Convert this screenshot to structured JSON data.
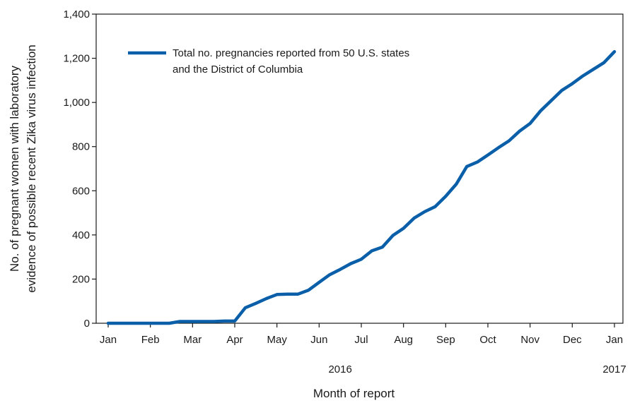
{
  "chart_data": {
    "type": "line",
    "title": "",
    "xlabel": "Month of report",
    "ylabel_lines": [
      "No. of pregnant women with laboratory",
      "evidence of possible recent Zika virus infection"
    ],
    "ylim": [
      0,
      1400
    ],
    "yticks": [
      0,
      200,
      400,
      600,
      800,
      1000,
      1200,
      1400
    ],
    "ytick_labels": [
      "0",
      "200",
      "400",
      "600",
      "800",
      "1,000",
      "1,200",
      "1,400"
    ],
    "xlim": [
      0,
      12.25
    ],
    "xticks": [
      0,
      1,
      2,
      3,
      4,
      5,
      6,
      7,
      8,
      9,
      10,
      11,
      12
    ],
    "xtick_labels": [
      "Jan",
      "Feb",
      "Mar",
      "Apr",
      "May",
      "Jun",
      "Jul",
      "Aug",
      "Sep",
      "Oct",
      "Nov",
      "Dec",
      "Jan"
    ],
    "year_labels": [
      {
        "label": "2016",
        "x": 5.5
      },
      {
        "label": "2017",
        "x": 12.0
      }
    ],
    "grid": false,
    "legend_position": "top-left",
    "series": [
      {
        "name_lines": [
          "Total no. pregnancies reported from 50 U.S. states",
          "and the District of Columbia"
        ],
        "color": "#0a5fa8",
        "x": [
          0,
          0.25,
          0.5,
          0.75,
          1.0,
          1.25,
          1.45,
          1.7,
          2.0,
          2.25,
          2.5,
          2.75,
          3.0,
          3.25,
          3.5,
          3.75,
          4.0,
          4.25,
          4.5,
          4.75,
          5.0,
          5.25,
          5.5,
          5.75,
          6.0,
          6.25,
          6.5,
          6.75,
          7.0,
          7.25,
          7.5,
          7.75,
          8.0,
          8.25,
          8.5,
          8.75,
          9.0,
          9.25,
          9.5,
          9.75,
          10.0,
          10.25,
          10.5,
          10.75,
          11.0,
          11.25,
          11.5,
          11.75,
          12.0
        ],
        "y": [
          0,
          0,
          0,
          0,
          0,
          0,
          0,
          8,
          8,
          8,
          8,
          10,
          10,
          70,
          90,
          112,
          130,
          132,
          132,
          150,
          185,
          220,
          244,
          270,
          290,
          328,
          345,
          398,
          430,
          476,
          505,
          528,
          575,
          630,
          710,
          730,
          762,
          795,
          826,
          870,
          905,
          962,
          1008,
          1054,
          1085,
          1120,
          1150,
          1180,
          1230
        ]
      }
    ]
  }
}
